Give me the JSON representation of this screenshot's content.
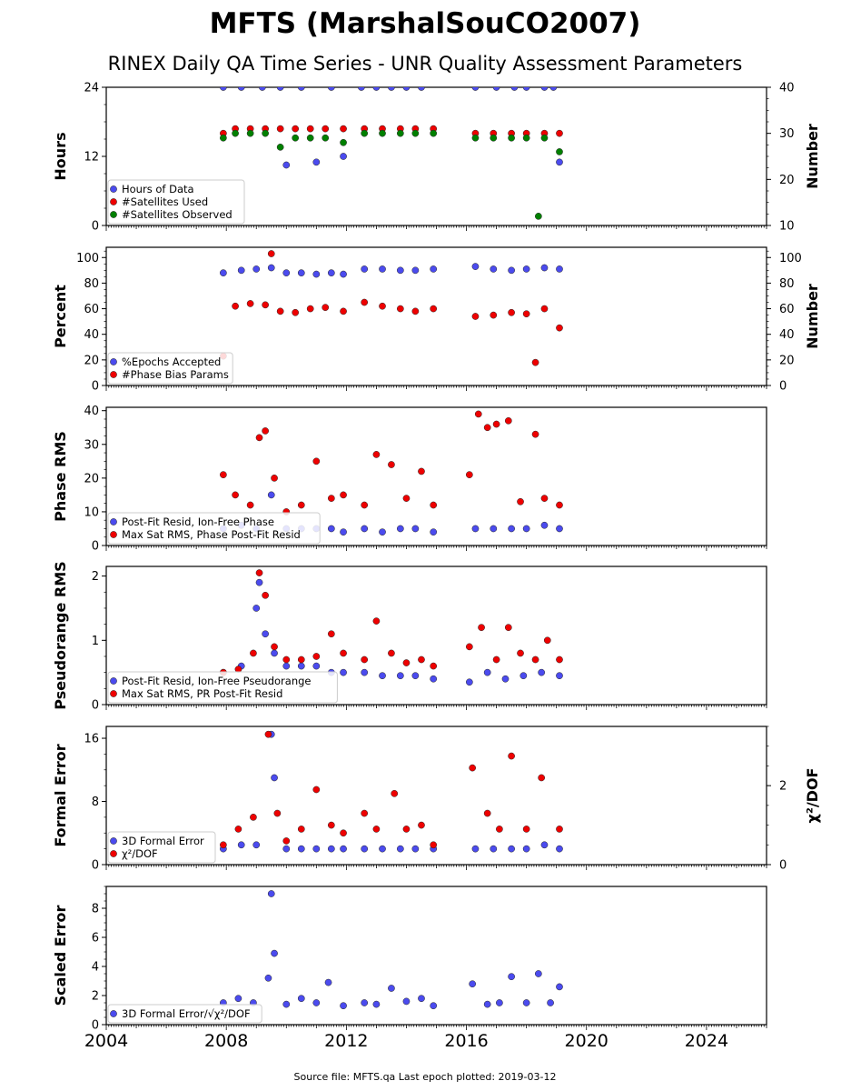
{
  "title": "MFTS (MarshalSouCO2007)",
  "subtitle": "RINEX Daily QA Time Series - UNR Quality Assessment Parameters",
  "footer": "Source file: MFTS.qa Last epoch plotted: 2019-03-12",
  "colors": {
    "blue": "#4b4bee",
    "red": "#ee0000",
    "green": "#008000"
  },
  "chart_data": [
    {
      "type": "scatter",
      "ylabel": "Hours",
      "y2label": "Number",
      "ylim": [
        0,
        24
      ],
      "y2lim": [
        10,
        40
      ],
      "yticks": [
        "0",
        "12",
        "24"
      ],
      "y2ticks": [
        "10",
        "20",
        "30",
        "40"
      ],
      "xlim": [
        2004,
        2026
      ],
      "series": [
        {
          "name": "Hours of Data",
          "axis": "left",
          "color": "#4b4bee",
          "x": [
            2007.9,
            2008.5,
            2009.2,
            2009.8,
            2010.0,
            2010.5,
            2011.0,
            2011.5,
            2011.9,
            2012.5,
            2013.0,
            2013.5,
            2014.0,
            2014.5,
            2016.3,
            2017.0,
            2017.6,
            2018.0,
            2018.6,
            2018.9,
            2019.1
          ],
          "y": [
            24,
            24,
            24,
            24,
            10.5,
            24,
            11,
            24,
            12,
            24,
            24,
            24,
            24,
            24,
            24,
            24,
            24,
            24,
            24,
            24,
            11
          ]
        },
        {
          "name": "#Satellites Used",
          "axis": "right",
          "color": "#ee0000",
          "x": [
            2007.9,
            2008.3,
            2008.8,
            2009.3,
            2009.8,
            2010.3,
            2010.8,
            2011.3,
            2011.9,
            2012.6,
            2013.2,
            2013.8,
            2014.3,
            2014.9,
            2016.3,
            2016.9,
            2017.5,
            2018.0,
            2018.6,
            2019.1
          ],
          "y": [
            30,
            31,
            31,
            31,
            31,
            31,
            31,
            31,
            31,
            31,
            31,
            31,
            31,
            31,
            30,
            30,
            30,
            30,
            30,
            30
          ]
        },
        {
          "name": "#Satellites Observed",
          "axis": "right",
          "color": "#008000",
          "x": [
            2007.9,
            2008.3,
            2008.8,
            2009.3,
            2009.8,
            2010.3,
            2010.8,
            2011.3,
            2011.9,
            2012.6,
            2013.2,
            2013.8,
            2014.3,
            2014.9,
            2016.3,
            2016.9,
            2017.5,
            2018.0,
            2018.4,
            2018.6,
            2019.1
          ],
          "y": [
            29,
            30,
            30,
            30,
            27,
            29,
            29,
            29,
            28,
            30,
            30,
            30,
            30,
            30,
            29,
            29,
            29,
            29,
            12,
            29,
            26
          ]
        }
      ]
    },
    {
      "type": "scatter",
      "ylabel": "Percent",
      "y2label": "Number",
      "ylim": [
        0,
        108
      ],
      "y2lim": [
        0,
        108
      ],
      "yticks": [
        "0",
        "20",
        "40",
        "60",
        "80",
        "100"
      ],
      "y2ticks": [
        "0",
        "20",
        "40",
        "60",
        "80",
        "100"
      ],
      "xlim": [
        2004,
        2026
      ],
      "series": [
        {
          "name": "%Epochs Accepted",
          "axis": "left",
          "color": "#4b4bee",
          "x": [
            2007.9,
            2008.5,
            2009.0,
            2009.5,
            2010.0,
            2010.5,
            2011.0,
            2011.5,
            2011.9,
            2012.6,
            2013.2,
            2013.8,
            2014.3,
            2014.9,
            2016.3,
            2016.9,
            2017.5,
            2018.0,
            2018.6,
            2019.1
          ],
          "y": [
            88,
            90,
            91,
            92,
            88,
            88,
            87,
            88,
            87,
            91,
            91,
            90,
            90,
            91,
            93,
            91,
            90,
            91,
            92,
            91
          ]
        },
        {
          "name": "#Phase Bias Params",
          "axis": "right",
          "color": "#ee0000",
          "x": [
            2007.9,
            2008.3,
            2008.8,
            2009.3,
            2009.5,
            2009.8,
            2010.3,
            2010.8,
            2011.3,
            2011.9,
            2012.6,
            2013.2,
            2013.8,
            2014.3,
            2014.9,
            2016.3,
            2016.9,
            2017.5,
            2018.0,
            2018.3,
            2018.6,
            2019.1
          ],
          "y": [
            23,
            62,
            64,
            63,
            103,
            58,
            57,
            60,
            61,
            58,
            65,
            62,
            60,
            58,
            60,
            54,
            55,
            57,
            56,
            18,
            60,
            45
          ]
        }
      ]
    },
    {
      "type": "scatter",
      "ylabel": "Phase RMS",
      "ylim": [
        0,
        41
      ],
      "yticks": [
        "0",
        "10",
        "20",
        "30",
        "40"
      ],
      "xlim": [
        2004,
        2026
      ],
      "series": [
        {
          "name": "Post-Fit Resid, Ion-Free Phase",
          "axis": "left",
          "color": "#4b4bee",
          "x": [
            2007.9,
            2008.5,
            2009.0,
            2009.5,
            2010.0,
            2010.5,
            2011.0,
            2011.5,
            2011.9,
            2012.6,
            2013.2,
            2013.8,
            2014.3,
            2014.9,
            2016.3,
            2016.9,
            2017.5,
            2018.0,
            2018.6,
            2019.1
          ],
          "y": [
            5,
            6,
            5,
            15,
            5,
            5,
            5,
            5,
            4,
            5,
            4,
            5,
            5,
            4,
            5,
            5,
            5,
            5,
            6,
            5
          ]
        },
        {
          "name": "Max Sat RMS, Phase Post-Fit Resid",
          "axis": "left",
          "color": "#ee0000",
          "x": [
            2007.9,
            2008.3,
            2008.8,
            2009.1,
            2009.3,
            2009.6,
            2010.0,
            2010.5,
            2011.0,
            2011.5,
            2011.9,
            2012.6,
            2013.0,
            2013.5,
            2014.0,
            2014.5,
            2014.9,
            2016.1,
            2016.4,
            2016.7,
            2017.0,
            2017.4,
            2017.8,
            2018.3,
            2018.6,
            2019.1
          ],
          "y": [
            21,
            15,
            12,
            32,
            34,
            20,
            10,
            12,
            25,
            14,
            15,
            12,
            27,
            24,
            14,
            22,
            12,
            21,
            39,
            35,
            36,
            37,
            13,
            33,
            14,
            12
          ]
        }
      ]
    },
    {
      "type": "scatter",
      "ylabel": "Pseudorange RMS",
      "ylim": [
        0,
        2.15
      ],
      "yticks": [
        "0",
        "1",
        "2"
      ],
      "xlim": [
        2004,
        2026
      ],
      "series": [
        {
          "name": "Post-Fit Resid, Ion-Free Pseudorange",
          "axis": "left",
          "color": "#4b4bee",
          "x": [
            2007.9,
            2008.5,
            2009.0,
            2009.1,
            2009.3,
            2009.6,
            2010.0,
            2010.5,
            2011.0,
            2011.5,
            2011.9,
            2012.6,
            2013.2,
            2013.8,
            2014.3,
            2014.9,
            2016.1,
            2016.7,
            2017.3,
            2017.9,
            2018.5,
            2019.1
          ],
          "y": [
            0.5,
            0.6,
            1.5,
            1.9,
            1.1,
            0.8,
            0.6,
            0.6,
            0.6,
            0.5,
            0.5,
            0.5,
            0.45,
            0.45,
            0.45,
            0.4,
            0.35,
            0.5,
            0.4,
            0.45,
            0.5,
            0.45
          ]
        },
        {
          "name": "Max Sat RMS, PR Post-Fit Resid",
          "axis": "left",
          "color": "#ee0000",
          "x": [
            2007.9,
            2008.4,
            2008.9,
            2009.1,
            2009.3,
            2009.6,
            2010.0,
            2010.5,
            2011.0,
            2011.5,
            2011.9,
            2012.6,
            2013.0,
            2013.5,
            2014.0,
            2014.5,
            2014.9,
            2016.1,
            2016.5,
            2017.0,
            2017.4,
            2017.8,
            2018.3,
            2018.7,
            2019.1
          ],
          "y": [
            0.5,
            0.55,
            0.8,
            2.05,
            1.7,
            0.9,
            0.7,
            0.7,
            0.75,
            1.1,
            0.8,
            0.7,
            1.3,
            0.8,
            0.65,
            0.7,
            0.6,
            0.9,
            1.2,
            0.7,
            1.2,
            0.8,
            0.7,
            1.0,
            0.7
          ]
        }
      ]
    },
    {
      "type": "scatter",
      "ylabel": "Formal Error",
      "y2label": "χ²/DOF",
      "ylim": [
        0,
        17.5
      ],
      "y2lim": [
        0,
        3.5
      ],
      "yticks": [
        "0",
        "8",
        "16"
      ],
      "y2ticks": [
        "0",
        "2"
      ],
      "xlim": [
        2004,
        2026
      ],
      "series": [
        {
          "name": "3D Formal Error",
          "axis": "left",
          "color": "#4b4bee",
          "x": [
            2007.9,
            2008.5,
            2009.0,
            2009.5,
            2009.6,
            2010.0,
            2010.5,
            2011.0,
            2011.5,
            2011.9,
            2012.6,
            2013.2,
            2013.8,
            2014.3,
            2014.9,
            2016.3,
            2016.9,
            2017.5,
            2018.0,
            2018.6,
            2019.1
          ],
          "y": [
            2,
            2.5,
            2.5,
            16.5,
            11,
            2,
            2,
            2,
            2,
            2,
            2,
            2,
            2,
            2,
            2,
            2,
            2,
            2,
            2,
            2.5,
            2
          ]
        },
        {
          "name": "χ²/DOF",
          "axis": "right",
          "color": "#ee0000",
          "x": [
            2007.9,
            2008.4,
            2008.9,
            2009.4,
            2009.7,
            2010.0,
            2010.5,
            2011.0,
            2011.5,
            2011.9,
            2012.6,
            2013.0,
            2013.6,
            2014.0,
            2014.5,
            2014.9,
            2016.2,
            2016.7,
            2017.1,
            2017.5,
            2018.0,
            2018.5,
            2019.1
          ],
          "y": [
            0.5,
            0.9,
            1.2,
            3.3,
            1.3,
            0.6,
            0.9,
            1.9,
            1.0,
            0.8,
            1.3,
            0.9,
            1.8,
            0.9,
            1.0,
            0.5,
            2.45,
            1.3,
            0.9,
            2.75,
            0.9,
            2.2,
            0.9
          ]
        }
      ]
    },
    {
      "type": "scatter",
      "ylabel": "Scaled Error",
      "ylim": [
        0,
        9.5
      ],
      "yticks": [
        "0",
        "2",
        "4",
        "6",
        "8"
      ],
      "xlim": [
        2004,
        2026
      ],
      "xticks": [
        "2004",
        "2008",
        "2012",
        "2016",
        "2020",
        "2024"
      ],
      "series": [
        {
          "name": "3D Formal Error/√χ²/DOF",
          "axis": "left",
          "color": "#4b4bee",
          "x": [
            2007.9,
            2008.4,
            2008.9,
            2009.4,
            2009.5,
            2009.6,
            2010.0,
            2010.5,
            2011.0,
            2011.4,
            2011.9,
            2012.6,
            2013.0,
            2013.5,
            2014.0,
            2014.5,
            2014.9,
            2016.2,
            2016.7,
            2017.1,
            2017.5,
            2018.0,
            2018.4,
            2018.8,
            2019.1
          ],
          "y": [
            1.5,
            1.8,
            1.5,
            3.2,
            9.0,
            4.9,
            1.4,
            1.8,
            1.5,
            2.9,
            1.3,
            1.5,
            1.4,
            2.5,
            1.6,
            1.8,
            1.3,
            2.8,
            1.4,
            1.5,
            3.3,
            1.5,
            3.5,
            1.5,
            2.6
          ]
        }
      ]
    }
  ]
}
